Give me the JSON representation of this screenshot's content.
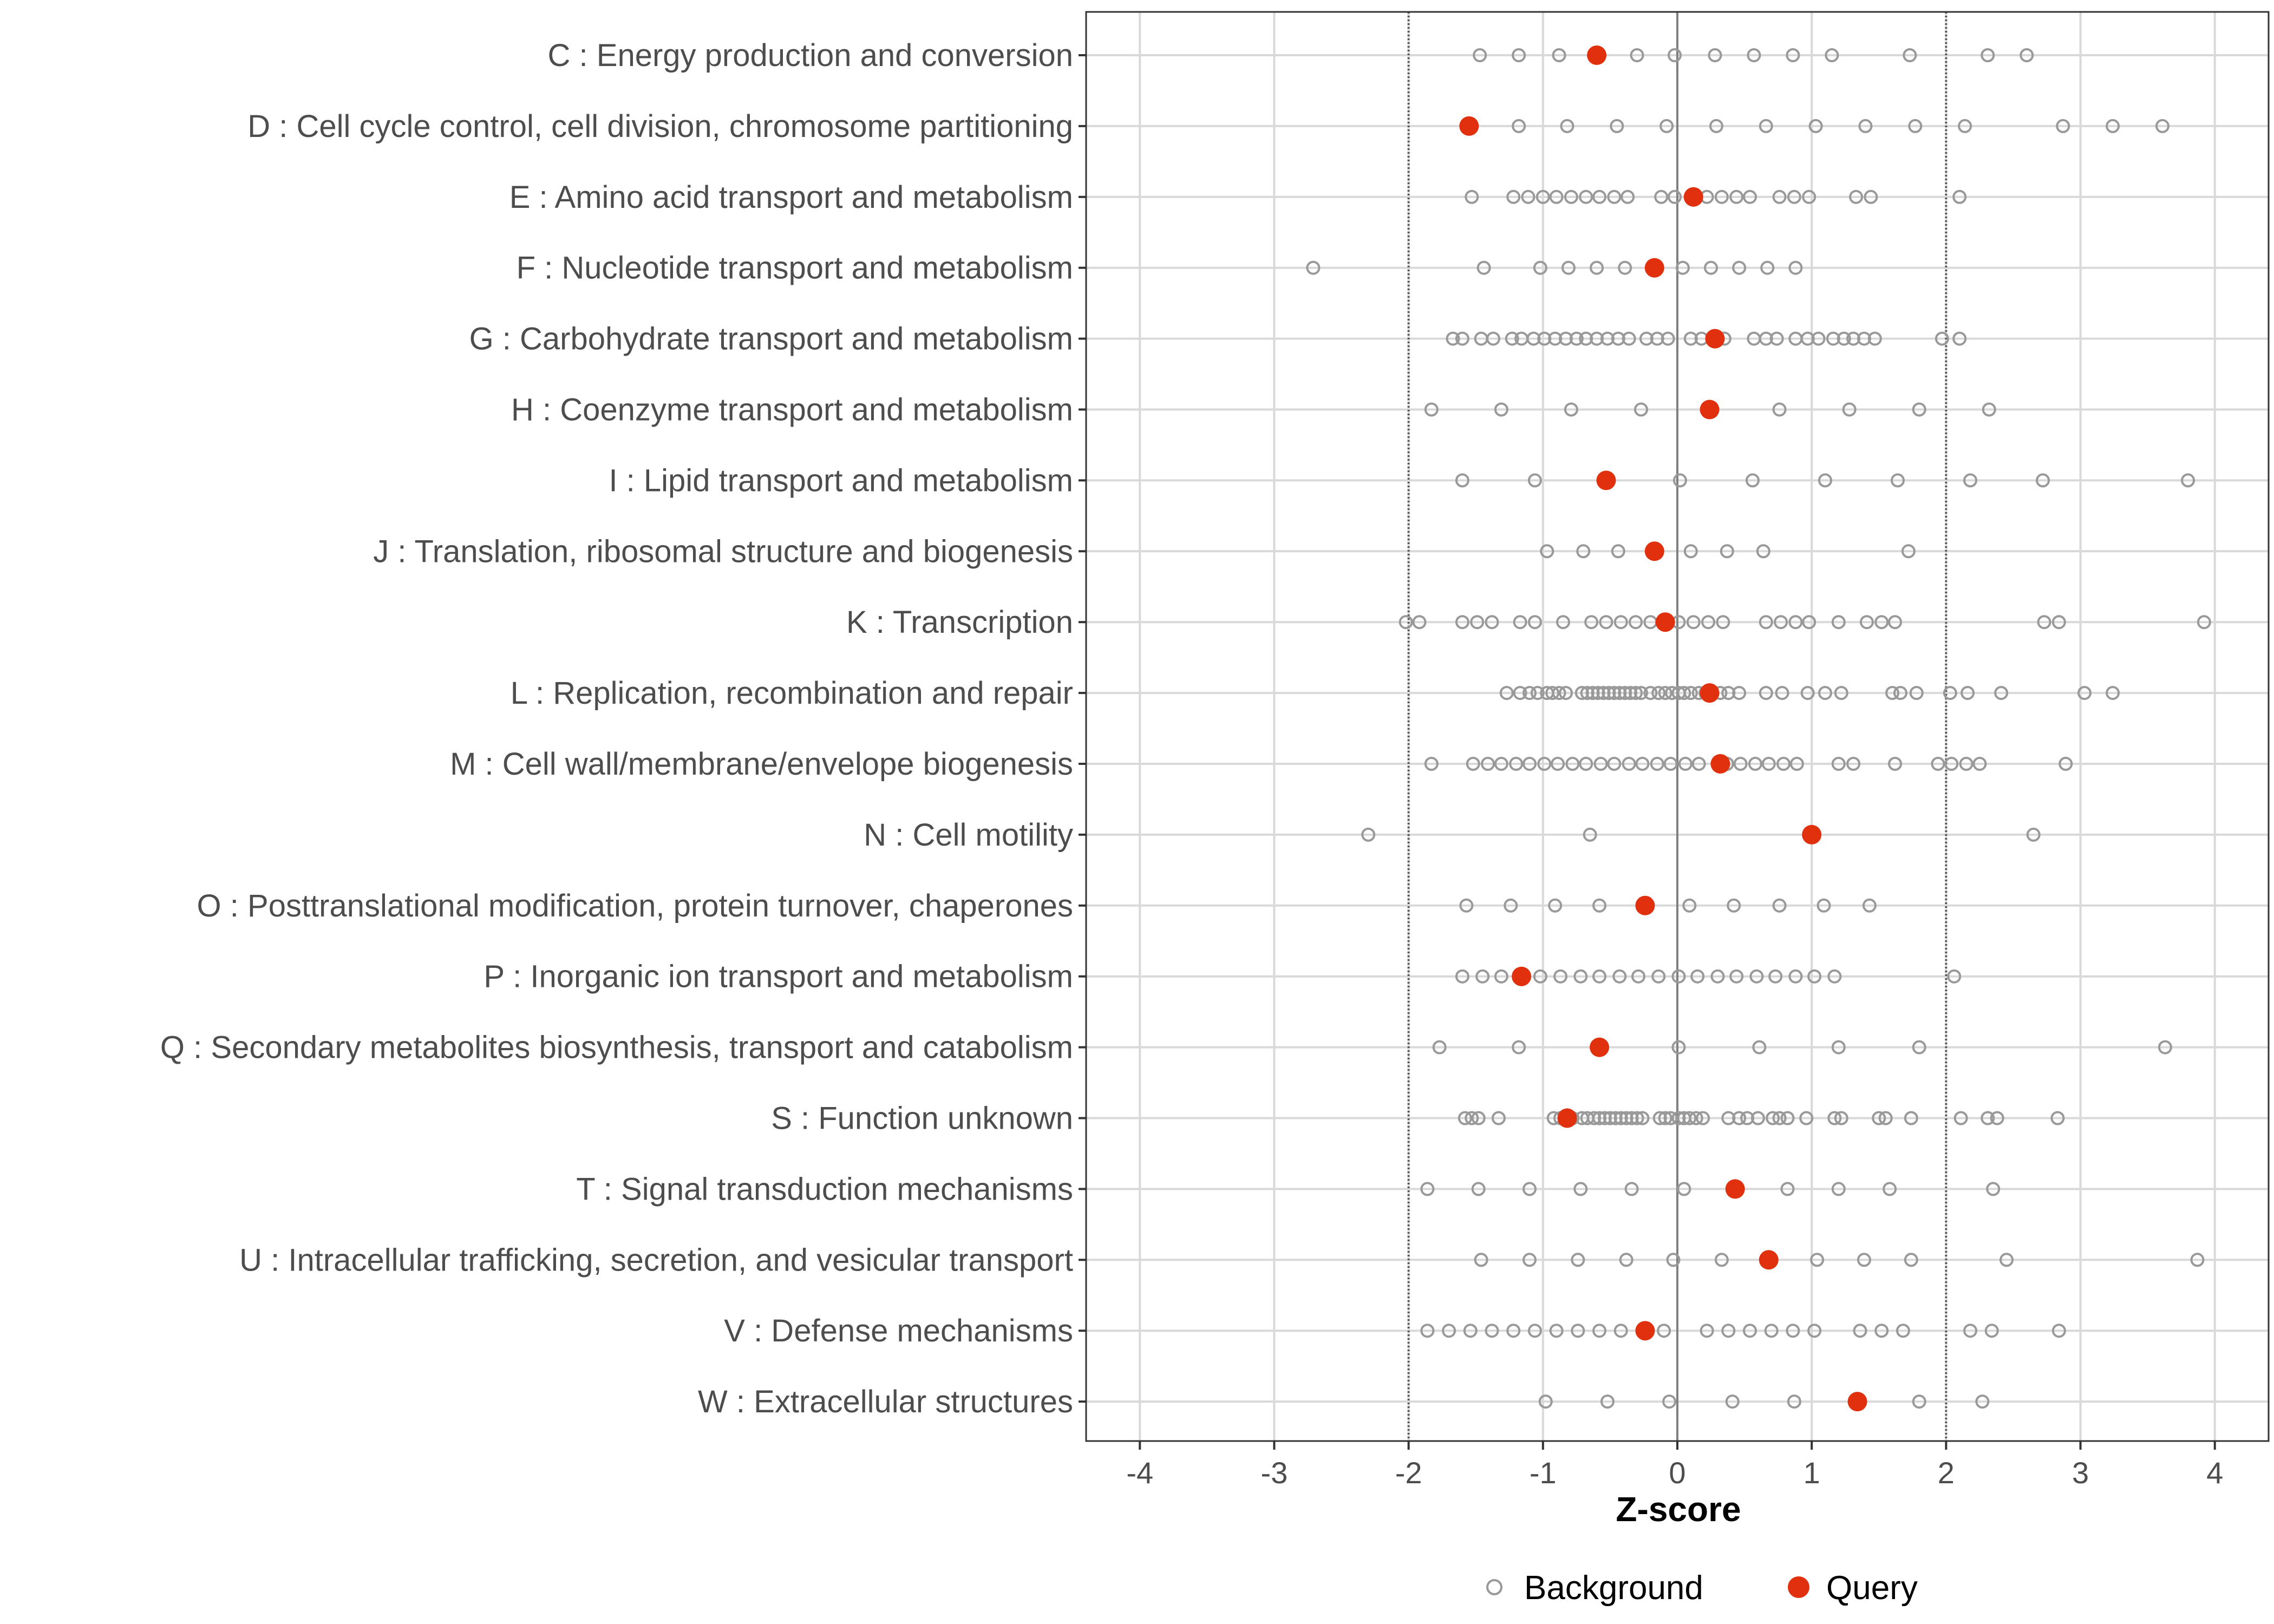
{
  "chart_data": {
    "type": "scatter",
    "xlabel": "Z-score",
    "xlim": [
      -4.4,
      4.4
    ],
    "x_ticks": [
      -4,
      -3,
      -2,
      -1,
      0,
      1,
      2,
      3,
      4
    ],
    "x_tick_labels": [
      "-4",
      "-3",
      "-2",
      "-1",
      "0",
      "1",
      "2",
      "3",
      "4"
    ],
    "reference_lines": [
      {
        "x": -2,
        "style": "dotted"
      },
      {
        "x": 0,
        "style": "solid"
      },
      {
        "x": 2,
        "style": "dotted"
      }
    ],
    "grid": true,
    "legend": {
      "position": "bottom",
      "entries": [
        {
          "label": "Background",
          "marker": "open-circle",
          "color": "#999999"
        },
        {
          "label": "Query",
          "marker": "filled-circle",
          "color": "#E0300E"
        }
      ]
    },
    "categories": [
      {
        "label": "C : Energy production and conversion",
        "query": -0.6,
        "background": [
          -1.47,
          -1.18,
          -0.88,
          -0.3,
          -0.02,
          0.28,
          0.57,
          0.86,
          1.15,
          1.73,
          2.31,
          2.6
        ]
      },
      {
        "label": "D : Cell cycle control, cell division, chromosome partitioning",
        "query": -1.55,
        "background": [
          -1.18,
          -0.82,
          -0.45,
          -0.08,
          0.29,
          0.66,
          1.03,
          1.4,
          1.77,
          2.14,
          2.87,
          3.24,
          3.61
        ]
      },
      {
        "label": "E : Amino acid transport and metabolism",
        "query": 0.12,
        "background": [
          -1.53,
          -1.22,
          -1.11,
          -1.0,
          -0.9,
          -0.79,
          -0.68,
          -0.58,
          -0.47,
          -0.37,
          -0.12,
          -0.02,
          0.22,
          0.33,
          0.44,
          0.54,
          0.76,
          0.87,
          0.98,
          1.33,
          1.44,
          2.1
        ]
      },
      {
        "label": "F : Nucleotide transport and metabolism",
        "query": -0.17,
        "background": [
          -2.71,
          -1.44,
          -1.02,
          -0.81,
          -0.6,
          -0.39,
          0.04,
          0.25,
          0.46,
          0.67,
          0.88
        ]
      },
      {
        "label": "G : Carbohydrate transport and metabolism",
        "query": 0.28,
        "background": [
          -1.67,
          -1.6,
          -1.46,
          -1.37,
          -1.23,
          -1.16,
          -1.07,
          -0.99,
          -0.91,
          -0.83,
          -0.75,
          -0.68,
          -0.6,
          -0.52,
          -0.44,
          -0.36,
          -0.23,
          -0.15,
          -0.07,
          0.1,
          0.18,
          0.35,
          0.57,
          0.66,
          0.74,
          0.88,
          0.97,
          1.05,
          1.16,
          1.24,
          1.31,
          1.39,
          1.47,
          1.97,
          2.1
        ]
      },
      {
        "label": "H : Coenzyme transport and metabolism",
        "query": 0.24,
        "background": [
          -1.83,
          -1.31,
          -0.79,
          -0.27,
          0.76,
          1.28,
          1.8,
          2.32
        ]
      },
      {
        "label": "I : Lipid transport and metabolism",
        "query": -0.53,
        "background": [
          -1.6,
          -1.06,
          0.02,
          0.56,
          1.1,
          1.64,
          2.18,
          2.72,
          3.8
        ]
      },
      {
        "label": "J : Translation, ribosomal structure and biogenesis",
        "query": -0.17,
        "background": [
          -0.97,
          -0.7,
          -0.44,
          0.1,
          0.37,
          0.64,
          1.72
        ]
      },
      {
        "label": "K : Transcription",
        "query": -0.09,
        "background": [
          -2.02,
          -1.92,
          -1.6,
          -1.49,
          -1.38,
          -1.17,
          -1.06,
          -0.85,
          -0.64,
          -0.53,
          -0.42,
          -0.31,
          -0.2,
          0.01,
          0.12,
          0.23,
          0.34,
          0.66,
          0.77,
          0.88,
          0.98,
          1.2,
          1.41,
          1.52,
          1.62,
          2.73,
          2.84,
          3.92
        ]
      },
      {
        "label": "L : Replication, recombination and repair",
        "query": 0.24,
        "background": [
          -1.27,
          -1.17,
          -1.1,
          -1.04,
          -0.97,
          -0.93,
          -0.88,
          -0.83,
          -0.71,
          -0.67,
          -0.63,
          -0.59,
          -0.55,
          -0.51,
          -0.47,
          -0.43,
          -0.39,
          -0.35,
          -0.31,
          -0.27,
          -0.2,
          -0.14,
          -0.09,
          -0.04,
          0.01,
          0.05,
          0.1,
          0.16,
          0.21,
          0.32,
          0.38,
          0.46,
          0.66,
          0.78,
          0.97,
          1.1,
          1.22,
          1.6,
          1.66,
          1.78,
          2.03,
          2.16,
          2.41,
          3.03,
          3.24
        ]
      },
      {
        "label": "M : Cell wall/membrane/envelope biogenesis",
        "query": 0.32,
        "background": [
          -1.83,
          -1.52,
          -1.41,
          -1.31,
          -1.2,
          -1.1,
          -0.99,
          -0.89,
          -0.78,
          -0.68,
          -0.57,
          -0.47,
          -0.36,
          -0.26,
          -0.15,
          -0.05,
          0.06,
          0.16,
          0.37,
          0.47,
          0.58,
          0.68,
          0.79,
          0.89,
          1.2,
          1.31,
          1.62,
          1.94,
          2.04,
          2.15,
          2.25,
          2.89
        ]
      },
      {
        "label": "N : Cell motility",
        "query": 1.0,
        "background": [
          -2.3,
          -0.65,
          2.65
        ]
      },
      {
        "label": "O : Posttranslational modification, protein turnover, chaperones",
        "query": -0.24,
        "background": [
          -1.57,
          -1.24,
          -0.91,
          -0.58,
          0.09,
          0.42,
          0.76,
          1.09,
          1.43
        ]
      },
      {
        "label": "P : Inorganic ion transport and metabolism",
        "query": -1.16,
        "background": [
          -1.6,
          -1.45,
          -1.31,
          -1.02,
          -0.87,
          -0.72,
          -0.58,
          -0.43,
          -0.29,
          -0.14,
          0.01,
          0.15,
          0.3,
          0.44,
          0.59,
          0.73,
          0.88,
          1.02,
          1.17,
          2.06
        ]
      },
      {
        "label": "Q : Secondary metabolites biosynthesis, transport and catabolism",
        "query": -0.58,
        "background": [
          -1.77,
          -1.18,
          0.01,
          0.61,
          1.2,
          1.8,
          3.63
        ]
      },
      {
        "label": "S : Function unknown",
        "query": -0.82,
        "background": [
          -1.58,
          -1.53,
          -1.48,
          -1.33,
          -0.92,
          -0.87,
          -0.78,
          -0.71,
          -0.67,
          -0.62,
          -0.58,
          -0.54,
          -0.5,
          -0.46,
          -0.42,
          -0.38,
          -0.34,
          -0.3,
          -0.26,
          -0.13,
          -0.09,
          -0.05,
          0.01,
          0.05,
          0.09,
          0.14,
          0.19,
          0.38,
          0.46,
          0.52,
          0.6,
          0.71,
          0.76,
          0.82,
          0.96,
          1.17,
          1.22,
          1.5,
          1.55,
          1.74,
          2.11,
          2.31,
          2.38,
          2.83
        ]
      },
      {
        "label": "T : Signal transduction mechanisms",
        "query": 0.43,
        "background": [
          -1.86,
          -1.48,
          -1.1,
          -0.72,
          -0.34,
          0.05,
          0.82,
          1.2,
          1.58,
          2.35
        ]
      },
      {
        "label": "U : Intracellular trafficking, secretion, and vesicular transport",
        "query": 0.68,
        "background": [
          -1.46,
          -1.1,
          -0.74,
          -0.38,
          -0.03,
          0.33,
          1.04,
          1.39,
          1.74,
          2.45,
          3.87
        ]
      },
      {
        "label": "V : Defense mechanisms",
        "query": -0.24,
        "background": [
          -1.86,
          -1.7,
          -1.54,
          -1.38,
          -1.22,
          -1.06,
          -0.9,
          -0.74,
          -0.58,
          -0.42,
          -0.1,
          0.22,
          0.38,
          0.54,
          0.7,
          0.86,
          1.02,
          1.36,
          1.52,
          1.68,
          2.18,
          2.34,
          2.84
        ]
      },
      {
        "label": "W : Extracellular structures",
        "query": 1.34,
        "background": [
          -0.98,
          -0.52,
          -0.06,
          0.41,
          0.87,
          1.8,
          2.27
        ]
      }
    ]
  }
}
